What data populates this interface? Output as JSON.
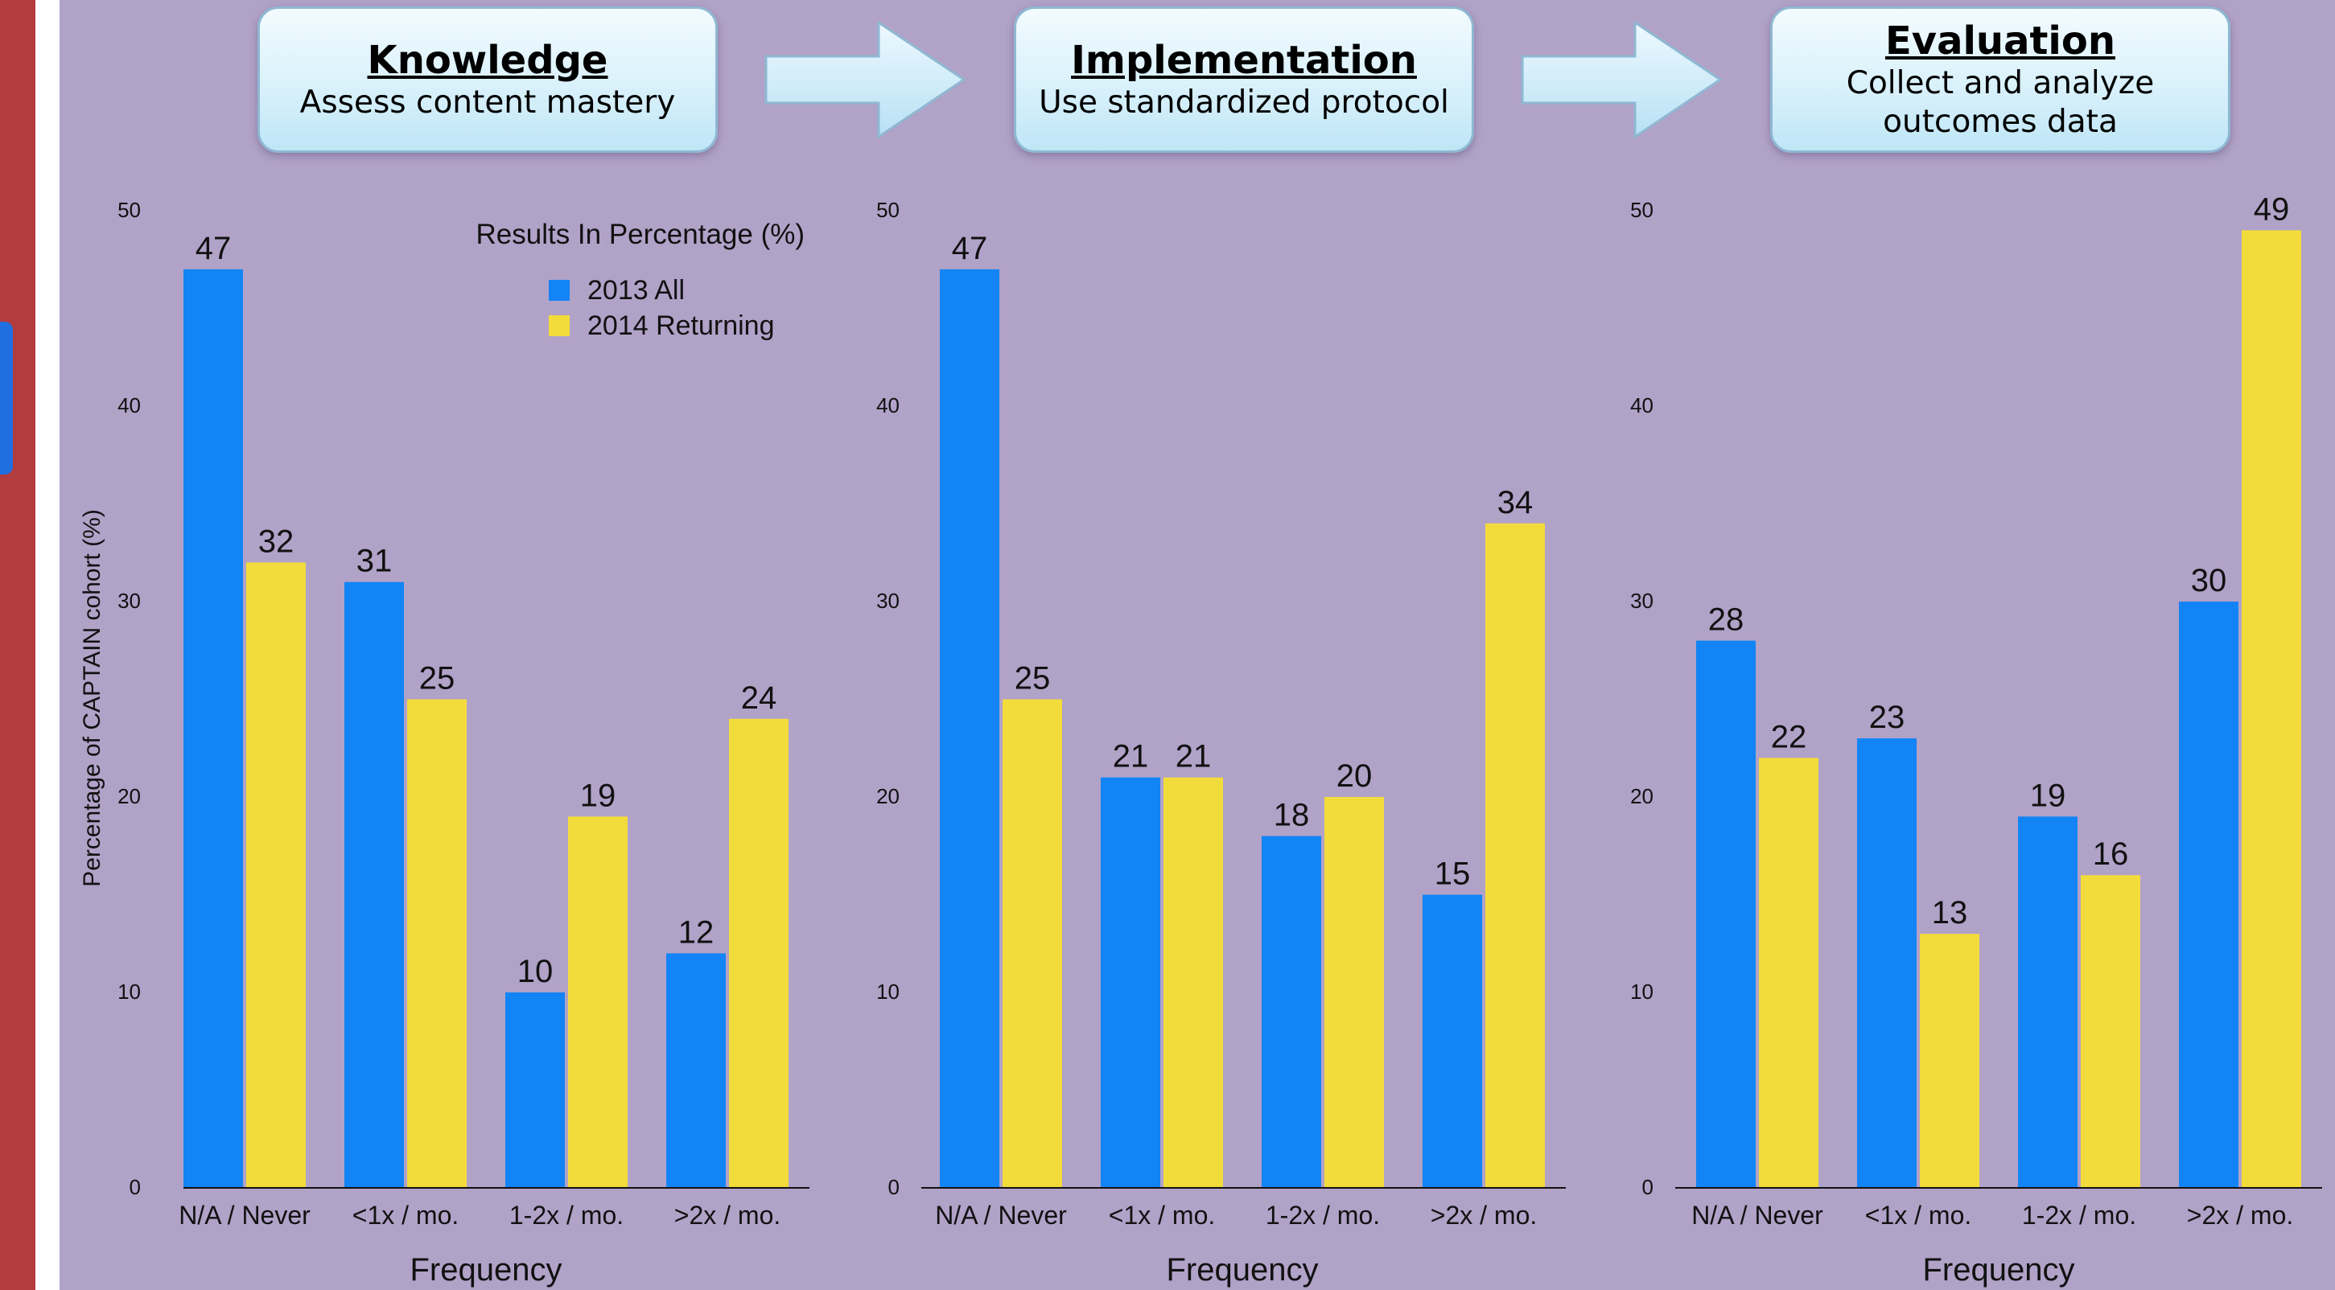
{
  "panels": [
    {
      "title": "Knowledge",
      "subtitle": "Assess content mastery"
    },
    {
      "title": "Implementation",
      "subtitle": "Use standardized protocol"
    },
    {
      "title": "Evaluation",
      "subtitle": "Collect and analyze outcomes data"
    }
  ],
  "legend": {
    "title": "Results In Percentage (%)",
    "items": [
      {
        "label": "2013 All",
        "color": "#1284f5"
      },
      {
        "label": "2014 Returning",
        "color": "#f2dc3c"
      }
    ]
  },
  "chart_data": [
    {
      "type": "bar",
      "categories": [
        "N/A / Never",
        "<1x / mo.",
        "1-2x / mo.",
        ">2x / mo."
      ],
      "series": [
        {
          "name": "2013 All",
          "values": [
            47,
            31,
            10,
            12
          ]
        },
        {
          "name": "2014 Returning",
          "values": [
            32,
            25,
            19,
            24
          ]
        }
      ],
      "xlabel": "Frequency",
      "ylabel": "Percentage of CAPTAIN cohort (%)",
      "ylim": [
        0,
        50
      ],
      "yticks": [
        0,
        10,
        20,
        30,
        40,
        50
      ],
      "legend": "top-right",
      "grid": false
    },
    {
      "type": "bar",
      "categories": [
        "N/A / Never",
        "<1x / mo.",
        "1-2x / mo.",
        ">2x / mo."
      ],
      "series": [
        {
          "name": "2013 All",
          "values": [
            47,
            21,
            18,
            15
          ]
        },
        {
          "name": "2014 Returning",
          "values": [
            25,
            21,
            20,
            34
          ]
        }
      ],
      "xlabel": "Frequency",
      "ylabel": "",
      "ylim": [
        0,
        50
      ],
      "yticks": [
        0,
        10,
        20,
        30,
        40,
        50
      ],
      "grid": false
    },
    {
      "type": "bar",
      "categories": [
        "N/A / Never",
        "<1x / mo.",
        "1-2x / mo.",
        ">2x / mo."
      ],
      "series": [
        {
          "name": "2013 All",
          "values": [
            28,
            23,
            19,
            30
          ]
        },
        {
          "name": "2014 Returning",
          "values": [
            22,
            13,
            16,
            49
          ]
        }
      ],
      "xlabel": "Frequency",
      "ylabel": "",
      "ylim": [
        0,
        50
      ],
      "yticks": [
        0,
        10,
        20,
        30,
        40,
        50
      ],
      "grid": false
    }
  ]
}
